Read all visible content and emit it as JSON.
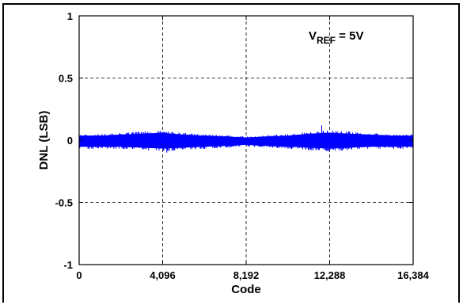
{
  "chart_data": {
    "type": "line",
    "xlabel": "Code",
    "ylabel": "DNL (LSB)",
    "xlim": [
      0,
      16384
    ],
    "ylim": [
      -1,
      1
    ],
    "x_ticks": [
      0,
      4096,
      8192,
      12288,
      16384
    ],
    "x_tick_labels": [
      "0",
      "4,096",
      "8,192",
      "12,288",
      "16,384"
    ],
    "y_ticks": [
      1,
      0.5,
      0,
      -0.5,
      -1
    ],
    "y_tick_labels": [
      "1",
      "0.5",
      "0",
      "-0.5",
      "-1"
    ],
    "grid": true,
    "grid_style": "dashed",
    "annotation": {
      "prefix": "V",
      "subscript": "REF",
      "suffix": " = 5V"
    },
    "series": [
      {
        "color": "#0000ff",
        "envelope": {
          "x": [
            0,
            1024,
            2048,
            3072,
            4096,
            5120,
            6144,
            7168,
            8192,
            9216,
            10240,
            11264,
            12288,
            13312,
            14336,
            15360,
            16384
          ],
          "upper": [
            0.05,
            0.05,
            0.06,
            0.07,
            0.08,
            0.06,
            0.05,
            0.04,
            0.03,
            0.04,
            0.05,
            0.07,
            0.08,
            0.07,
            0.06,
            0.05,
            0.05
          ],
          "lower": [
            -0.07,
            -0.07,
            -0.07,
            -0.08,
            -0.09,
            -0.08,
            -0.07,
            -0.06,
            -0.05,
            -0.06,
            -0.07,
            -0.08,
            -0.09,
            -0.08,
            -0.07,
            -0.07,
            -0.07
          ]
        },
        "peak_max": 0.12,
        "peak_min": -0.1
      }
    ]
  }
}
